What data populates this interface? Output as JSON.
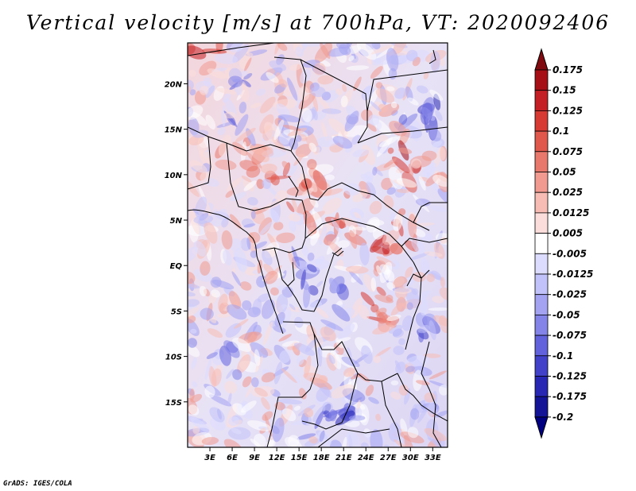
{
  "title": "Vertical velocity [m/s] at 700hPa, VT: 2020092406",
  "credit": "GrADS: IGES/COLA",
  "map": {
    "lon_range": [
      0,
      35
    ],
    "lat_range": [
      -20,
      24.5
    ],
    "lon_ticks": [
      "3E",
      "6E",
      "9E",
      "12E",
      "15E",
      "18E",
      "21E",
      "24E",
      "27E",
      "30E",
      "33E"
    ],
    "lat_ticks": [
      "20N",
      "15N",
      "10N",
      "5N",
      "EQ",
      "5S",
      "10S",
      "15S"
    ]
  },
  "colorbar": {
    "labels": [
      "0.175",
      "0.15",
      "0.125",
      "0.1",
      "0.075",
      "0.05",
      "0.025",
      "0.0125",
      "0.005",
      "-0.005",
      "-0.0125",
      "-0.025",
      "-0.05",
      "-0.075",
      "-0.1",
      "-0.125",
      "-0.175",
      "-0.2"
    ],
    "colors": [
      "#7f0a0f",
      "#a50f15",
      "#c41f24",
      "#d63a32",
      "#e0584c",
      "#e9786c",
      "#f19a90",
      "#f7bdb5",
      "#fbdedb",
      "#ffffff",
      "#dcdcff",
      "#c2c2fa",
      "#a3a3f2",
      "#8484e8",
      "#6262dc",
      "#4141ca",
      "#2727b4",
      "#141496",
      "#000080"
    ]
  },
  "colors": {
    "positive": "#d63a32",
    "negative": "#4141ca",
    "border": "#000000"
  }
}
